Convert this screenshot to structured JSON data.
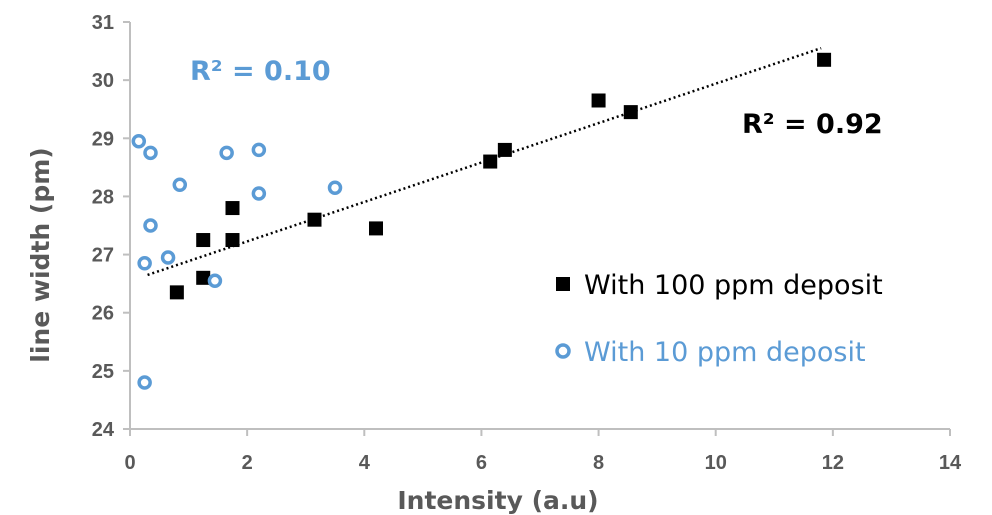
{
  "chart_data": {
    "type": "scatter",
    "title": "",
    "xlabel": "Intensity (a.u)",
    "ylabel": "line width (pm)",
    "xlim": [
      0,
      14
    ],
    "ylim": [
      24,
      31
    ],
    "x_ticks": [
      0,
      2,
      4,
      6,
      8,
      10,
      12,
      14
    ],
    "y_ticks": [
      24,
      25,
      26,
      27,
      28,
      29,
      30,
      31
    ],
    "grid": false,
    "legend_position": "right",
    "series": [
      {
        "name": "With 100 ppm deposit",
        "marker": "filled-square",
        "color": "#000000",
        "points": [
          [
            0.8,
            26.35
          ],
          [
            1.25,
            26.6
          ],
          [
            1.25,
            27.25
          ],
          [
            1.75,
            27.25
          ],
          [
            1.75,
            27.8
          ],
          [
            3.15,
            27.6
          ],
          [
            4.2,
            27.45
          ],
          [
            6.15,
            28.6
          ],
          [
            6.4,
            28.8
          ],
          [
            8.0,
            29.65
          ],
          [
            8.55,
            29.45
          ],
          [
            11.85,
            30.35
          ]
        ],
        "trendline": {
          "type": "linear",
          "style": "dotted",
          "from": [
            0.3,
            26.65
          ],
          "to": [
            11.8,
            30.55
          ]
        },
        "r_squared_label": "R² = 0.92"
      },
      {
        "name": "With 10 ppm deposit",
        "marker": "open-circle",
        "color": "#5B9BD5",
        "points": [
          [
            0.15,
            28.95
          ],
          [
            0.35,
            28.75
          ],
          [
            0.85,
            28.2
          ],
          [
            1.65,
            28.75
          ],
          [
            2.2,
            28.8
          ],
          [
            2.2,
            28.05
          ],
          [
            3.5,
            28.15
          ],
          [
            0.35,
            27.5
          ],
          [
            0.65,
            26.95
          ],
          [
            0.25,
            26.85
          ],
          [
            1.45,
            26.55
          ],
          [
            0.25,
            24.8
          ]
        ],
        "r_squared_label": "R² = 0.10"
      }
    ]
  }
}
